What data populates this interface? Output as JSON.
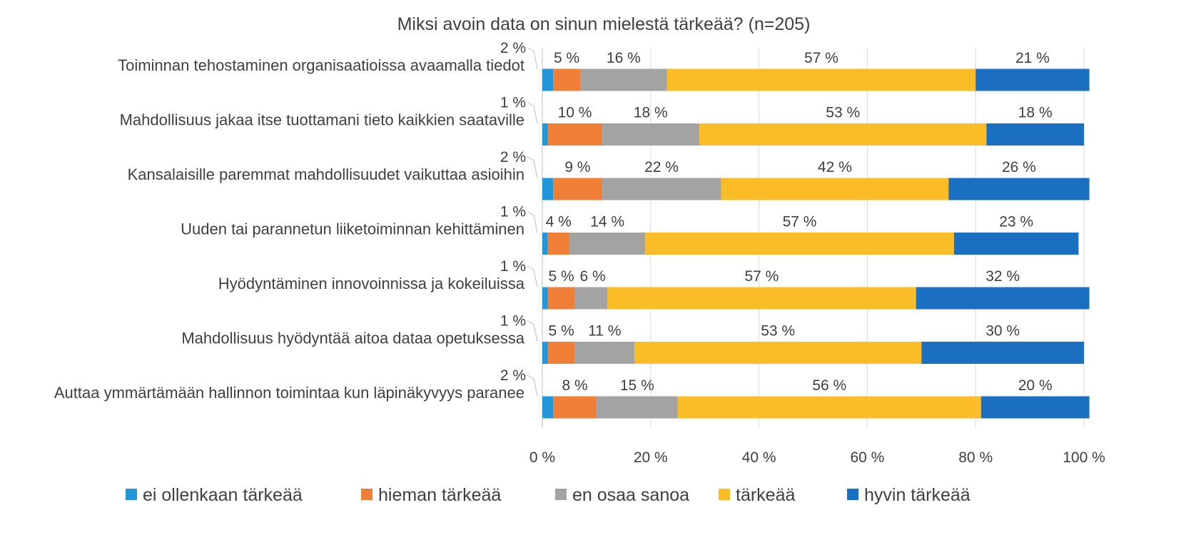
{
  "chart_data": {
    "type": "bar",
    "orientation": "horizontal",
    "stacked": "percent",
    "title": "Miksi avoin data on sinun mielestä tärkeää? (n=205)",
    "xlabel": "",
    "ylabel": "",
    "xlim": [
      0,
      100
    ],
    "x_ticks": [
      "0 %",
      "20 %",
      "40 %",
      "60 %",
      "80 %",
      "100 %"
    ],
    "x_tick_values": [
      0,
      20,
      40,
      60,
      80,
      100
    ],
    "grid": true,
    "legend_position": "bottom",
    "categories": [
      "Toiminnan tehostaminen organisaatioissa avaamalla tiedot",
      "Mahdollisuus jakaa itse tuottamani tieto kaikkien saataville",
      "Kansalaisille paremmat mahdollisuudet vaikuttaa asioihin",
      "Uuden tai parannetun liiketoiminnan kehittäminen",
      "Hyödyntäminen innovoinnissa ja kokeiluissa",
      "Mahdollisuus hyödyntää aitoa dataa opetuksessa",
      "Auttaa ymmärtämään hallinnon toimintaa kun läpinäkyvyys paranee"
    ],
    "series": [
      {
        "name": "ei ollenkaan tärkeää",
        "color": "#2196d8",
        "values": [
          2,
          1,
          2,
          1,
          1,
          1,
          2
        ],
        "labels": [
          "2 %",
          "1 %",
          "2 %",
          "1 %",
          "1 %",
          "1 %",
          "2 %"
        ]
      },
      {
        "name": "hieman tärkeää",
        "color": "#ef7e37",
        "values": [
          5,
          10,
          9,
          4,
          5,
          5,
          8
        ],
        "labels": [
          "5 %",
          "10 %",
          "9 %",
          "4 %",
          "5 %",
          "5 %",
          "8 %"
        ]
      },
      {
        "name": "en osaa sanoa",
        "color": "#a3a3a3",
        "values": [
          16,
          18,
          22,
          14,
          6,
          11,
          15
        ],
        "labels": [
          "16 %",
          "18 %",
          "22 %",
          "14 %",
          "6 %",
          "11 %",
          "15 %"
        ]
      },
      {
        "name": "tärkeää",
        "color": "#fbbd27",
        "values": [
          57,
          53,
          42,
          57,
          57,
          53,
          56
        ],
        "labels": [
          "57 %",
          "53 %",
          "42 %",
          "57 %",
          "57 %",
          "53 %",
          "56 %"
        ]
      },
      {
        "name": "hyvin tärkeää",
        "color": "#1b6fc0",
        "values": [
          21,
          18,
          26,
          23,
          32,
          30,
          20
        ],
        "labels": [
          "21 %",
          "18 %",
          "26 %",
          "23 %",
          "32 %",
          "30 %",
          "20 %"
        ]
      }
    ]
  }
}
